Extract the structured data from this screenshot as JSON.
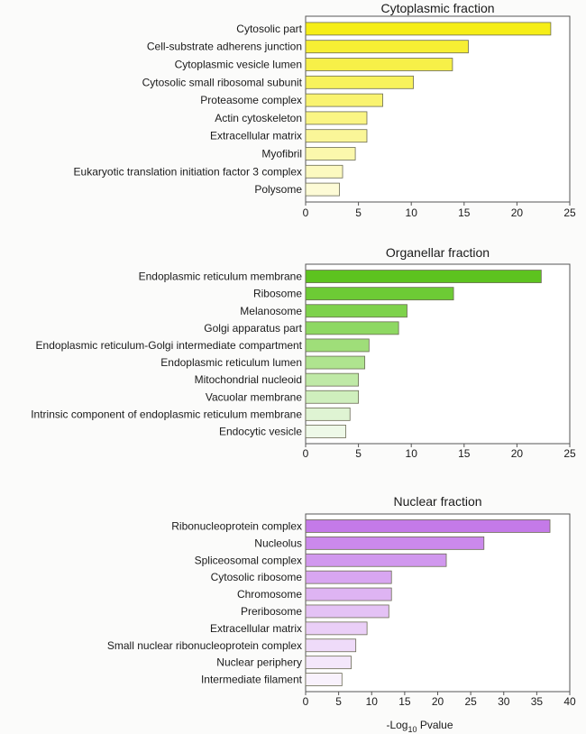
{
  "chart_data": [
    {
      "type": "bar",
      "orientation": "horizontal",
      "title": "Cytoplasmic fraction",
      "xlabel": "",
      "xlim": [
        0,
        25
      ],
      "xticks": [
        0,
        5,
        10,
        15,
        20,
        25
      ],
      "grid": false,
      "categories": [
        "Cytosolic part",
        "Cell-substrate adherens junction",
        "Cytoplasmic vesicle lumen",
        "Cytosolic small ribosomal subunit",
        "Proteasome complex",
        "Actin cytoskeleton",
        "Extracellular matrix",
        "Myofibril",
        "Eukaryotic translation initiation factor 3 complex",
        "Polysome"
      ],
      "values": [
        23.2,
        15.4,
        13.9,
        10.2,
        7.3,
        5.8,
        5.8,
        4.7,
        3.5,
        3.2
      ],
      "colors": [
        "#f6ee17",
        "#f7ef34",
        "#f7f048",
        "#f8f25c",
        "#f9f370",
        "#faf584",
        "#faf698",
        "#fbf8ac",
        "#fcf9c0",
        "#fdfbd6"
      ]
    },
    {
      "type": "bar",
      "orientation": "horizontal",
      "title": "Organellar fraction",
      "xlabel": "",
      "xlim": [
        0,
        25
      ],
      "xticks": [
        0,
        5,
        10,
        15,
        20,
        25
      ],
      "grid": false,
      "categories": [
        "Endoplasmic reticulum membrane",
        "Ribosome",
        "Melanosome",
        "Golgi apparatus part",
        "Endoplasmic reticulum-Golgi intermediate compartment",
        "Endoplasmic reticulum lumen",
        "Mitochondrial nucleoid",
        "Vacuolar membrane",
        "Intrinsic component of endoplasmic reticulum membrane",
        "Endocytic vesicle"
      ],
      "values": [
        22.3,
        14.0,
        9.6,
        8.8,
        6.0,
        5.6,
        5.0,
        5.0,
        4.2,
        3.8
      ],
      "colors": [
        "#5dc31f",
        "#6dcb35",
        "#7ed24b",
        "#8ed862",
        "#9fde79",
        "#afe48f",
        "#bfe9a6",
        "#cfefbd",
        "#dff4d3",
        "#eef9e8"
      ]
    },
    {
      "type": "bar",
      "orientation": "horizontal",
      "title": "Nuclear fraction",
      "xlabel": "-Log10 Pvalue",
      "xlim": [
        0,
        40
      ],
      "xticks": [
        0,
        5,
        10,
        15,
        20,
        25,
        30,
        35,
        40
      ],
      "grid": false,
      "categories": [
        "Ribonucleoprotein complex",
        "Nucleolus",
        "Spliceosomal complex",
        "Cytosolic ribosome",
        "Chromosome",
        "Preribosome",
        "Extracellular matrix",
        "Small nuclear ribonucleoprotein complex",
        "Nuclear periphery",
        "Intermediate filament"
      ],
      "values": [
        37.0,
        27.0,
        21.3,
        13.0,
        13.0,
        12.6,
        9.3,
        7.6,
        6.9,
        5.5
      ],
      "colors": [
        "#c47ae8",
        "#cb89ec",
        "#d198ee",
        "#d8a6f1",
        "#deb4f3",
        "#e4c2f5",
        "#eacff7",
        "#efdbf9",
        "#f4e7fb",
        "#f9f2fd"
      ]
    }
  ]
}
